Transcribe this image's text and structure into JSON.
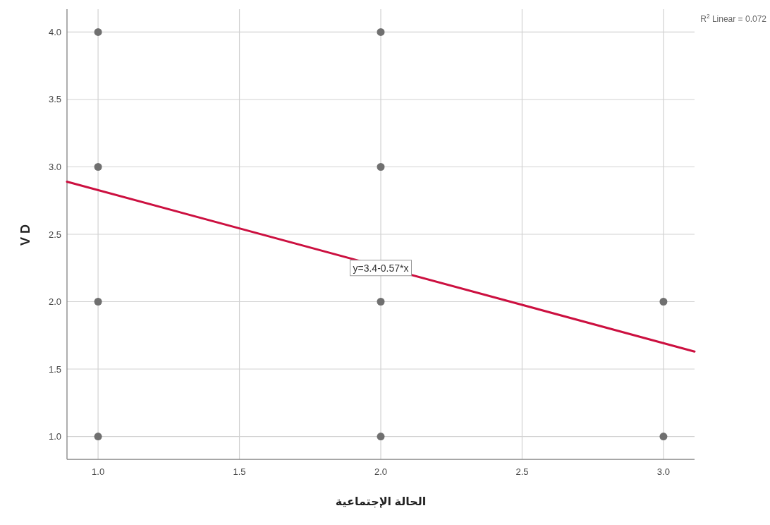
{
  "chart_data": {
    "type": "scatter",
    "xlabel": "الحالة الإجتماعية",
    "ylabel": "V D",
    "xlim": [
      0.89,
      3.11
    ],
    "ylim": [
      0.83,
      4.17
    ],
    "xticks": [
      {
        "value": 1,
        "label": "1.0"
      },
      {
        "value": 1.5,
        "label": "1.5"
      },
      {
        "value": 2,
        "label": "2.0"
      },
      {
        "value": 2.5,
        "label": "2.5"
      },
      {
        "value": 3,
        "label": "3.0"
      }
    ],
    "yticks": [
      {
        "value": 1,
        "label": "1.0"
      },
      {
        "value": 1.5,
        "label": "1.5"
      },
      {
        "value": 2,
        "label": "2.0"
      },
      {
        "value": 2.5,
        "label": "2.5"
      },
      {
        "value": 3,
        "label": "3.0"
      },
      {
        "value": 3.5,
        "label": "3.5"
      },
      {
        "value": 4,
        "label": "4.0"
      }
    ],
    "grid": true,
    "series": [
      {
        "color": "#707070",
        "marker": "circle",
        "x": [
          1,
          1,
          1,
          1,
          2,
          2,
          2,
          2,
          3,
          3
        ],
        "values": [
          1,
          2,
          3,
          4,
          1,
          2,
          3,
          4,
          1,
          2
        ]
      },
      {
        "type": "line",
        "color": "#cc1040",
        "x": [
          0.89,
          3.11
        ],
        "values": [
          2.89,
          1.63
        ]
      }
    ],
    "annotations": [
      {
        "text": "y=3.4-0.57*x",
        "x": 2.0,
        "y": 2.25
      },
      "R$^{2}$ Linear = 0.072"
    ]
  }
}
